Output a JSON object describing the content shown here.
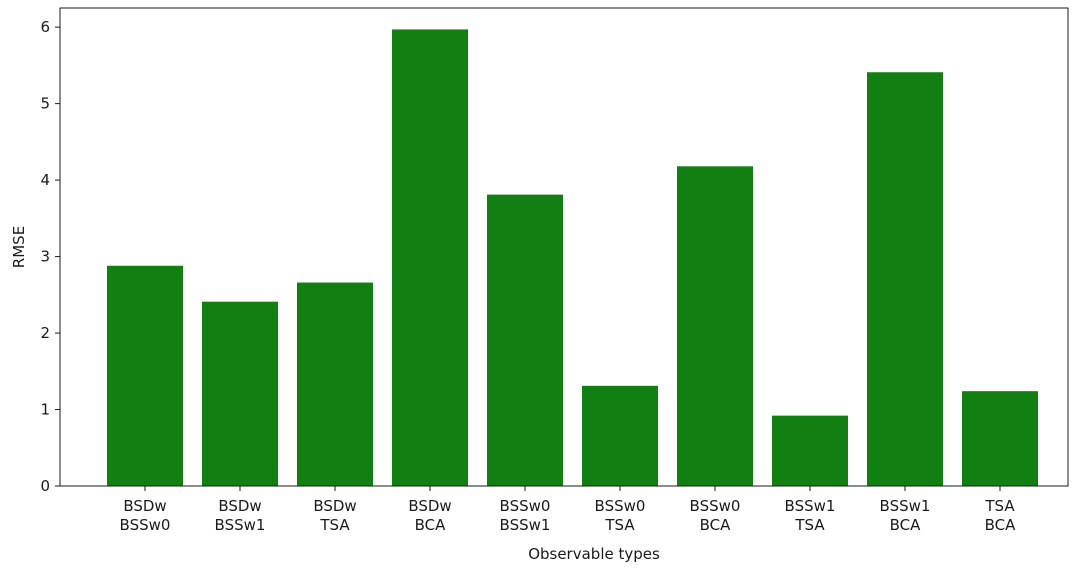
{
  "chart_data": {
    "type": "bar",
    "categories": [
      [
        "BSDw",
        "BSSw0"
      ],
      [
        "BSDw",
        "BSSw1"
      ],
      [
        "BSDw",
        "TSA"
      ],
      [
        "BSDw",
        "BCA"
      ],
      [
        "BSSw0",
        "BSSw1"
      ],
      [
        "BSSw0",
        "TSA"
      ],
      [
        "BSSw0",
        "BCA"
      ],
      [
        "BSSw1",
        "TSA"
      ],
      [
        "BSSw1",
        "BCA"
      ],
      [
        "TSA",
        "BCA"
      ]
    ],
    "values": [
      2.88,
      2.41,
      2.66,
      5.97,
      3.81,
      1.31,
      4.18,
      0.92,
      5.41,
      1.24
    ],
    "xlabel": "Observable types",
    "ylabel": "RMSE",
    "ylim": [
      0,
      6.25
    ],
    "yticks": [
      0,
      1,
      2,
      3,
      4,
      5,
      6
    ],
    "bar_color": "#117f11",
    "grid": false
  }
}
